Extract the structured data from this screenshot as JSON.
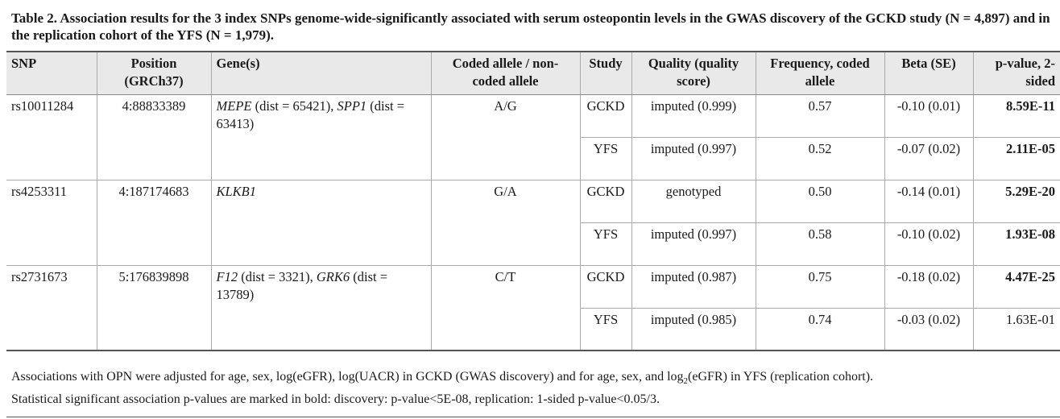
{
  "caption": "Table 2.  Association results for the 3 index SNPs genome-wide-significantly associated with serum osteopontin levels in the GWAS discovery of the GCKD study (N = 4,897) and in the replication cohort of the YFS (N = 1,979).",
  "headers": {
    "snp": "SNP",
    "position": "Position (GRCh37)",
    "genes": "Gene(s)",
    "allele": "Coded allele / non-coded allele",
    "study": "Study",
    "quality": "Quality (quality score)",
    "frequency": "Frequency, coded allele",
    "beta": "Beta (SE)",
    "pvalue": "p-value, 2-sided"
  },
  "rows": [
    {
      "snp": "rs10011284",
      "position": "4:88833389",
      "gene1": "MEPE",
      "gene1_note": " (dist = 65421), ",
      "gene2": "SPP1",
      "gene2_note": " (dist = 63413)",
      "allele": "A/G",
      "studies": [
        {
          "study": "GCKD",
          "quality": "imputed (0.999)",
          "frequency": "0.57",
          "beta": "-0.10 (0.01)",
          "pvalue": "8.59E-11",
          "bold": true
        },
        {
          "study": "YFS",
          "quality": "imputed (0.997)",
          "frequency": "0.52",
          "beta": "-0.07 (0.02)",
          "pvalue": "2.11E-05",
          "bold": true
        }
      ]
    },
    {
      "snp": "rs4253311",
      "position": "4:187174683",
      "gene1": "KLKB1",
      "gene1_note": "",
      "gene2": "",
      "gene2_note": "",
      "allele": "G/A",
      "studies": [
        {
          "study": "GCKD",
          "quality": "genotyped",
          "frequency": "0.50",
          "beta": "-0.14 (0.01)",
          "pvalue": "5.29E-20",
          "bold": true
        },
        {
          "study": "YFS",
          "quality": "imputed (0.997)",
          "frequency": "0.58",
          "beta": "-0.10 (0.02)",
          "pvalue": "1.93E-08",
          "bold": true
        }
      ]
    },
    {
      "snp": "rs2731673",
      "position": "5:176839898",
      "gene1": "F12",
      "gene1_note": " (dist = 3321), ",
      "gene2": "GRK6",
      "gene2_note": " (dist = 13789)",
      "allele": "C/T",
      "studies": [
        {
          "study": "GCKD",
          "quality": "imputed (0.987)",
          "frequency": "0.75",
          "beta": "-0.18 (0.02)",
          "pvalue": "4.47E-25",
          "bold": true
        },
        {
          "study": "YFS",
          "quality": "imputed (0.985)",
          "frequency": "0.74",
          "beta": "-0.03 (0.02)",
          "pvalue": "1.63E-01",
          "bold": false
        }
      ]
    }
  ],
  "footnote1": {
    "before": "Associations with OPN were adjusted for age, sex, log(eGFR), log(UACR) in GCKD (GWAS discovery) and for age, sex, and log",
    "sub": "2",
    "after": "(eGFR) in YFS (replication cohort)."
  },
  "footnote2": "Statistical significant association p-values are marked in bold: discovery: p-value<5E-08, replication: 1-sided p-value<0.05/3."
}
